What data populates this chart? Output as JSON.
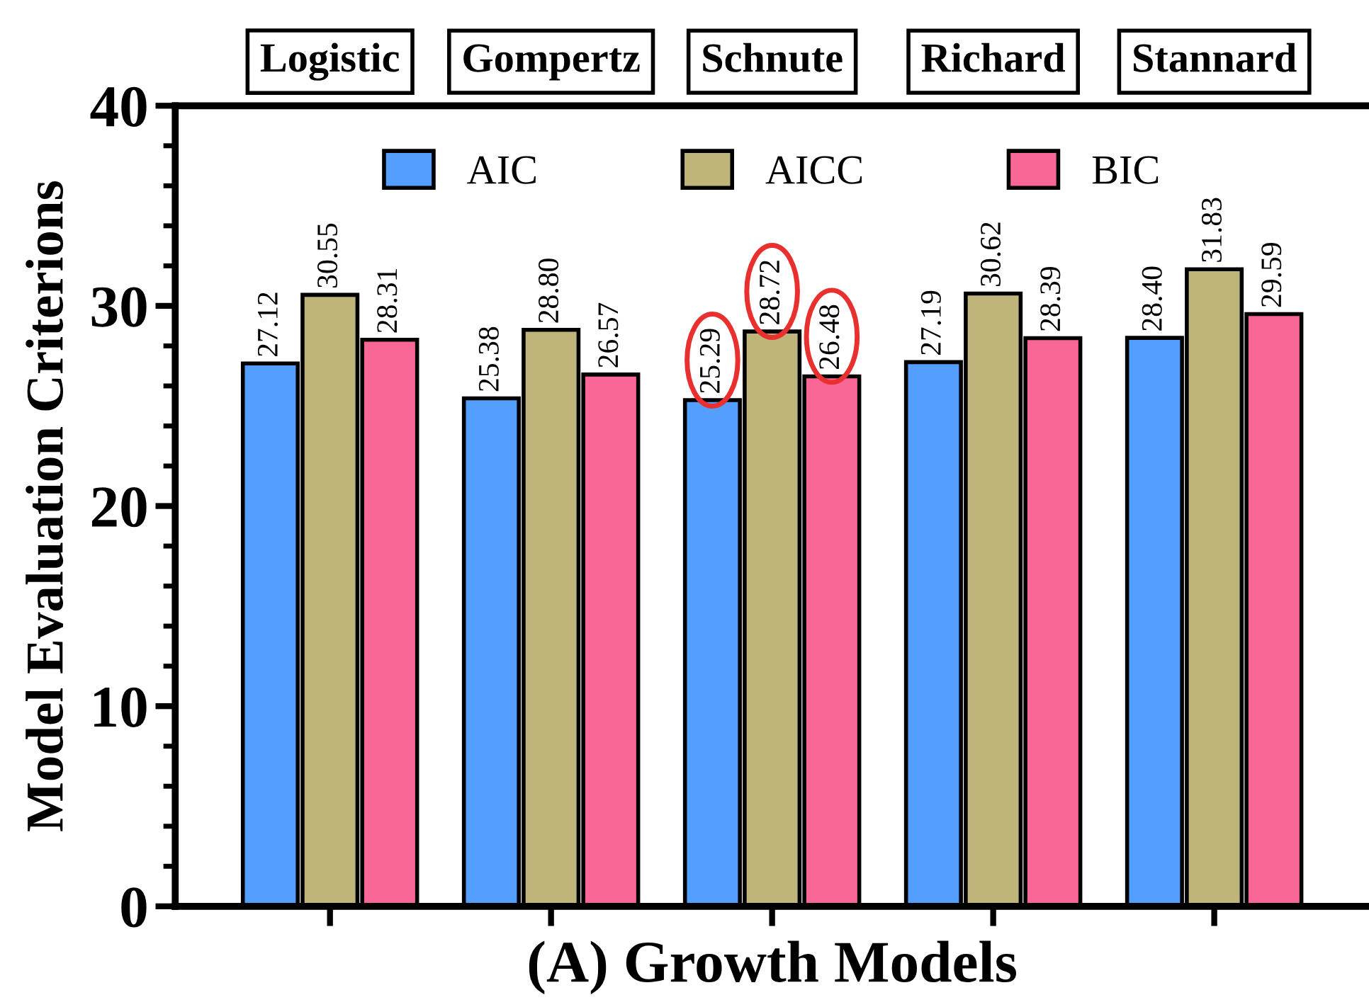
{
  "chart_data": {
    "type": "bar",
    "xlabel": "(A) Growth Models",
    "ylabel": "Model Evaluation Criterions",
    "categories": [
      "Logistic",
      "Gompertz",
      "Schnute",
      "Richard",
      "Stannard"
    ],
    "series": [
      {
        "name": "AIC",
        "color": "#549ffd",
        "values": [
          27.12,
          25.38,
          25.29,
          27.19,
          28.4
        ],
        "value_labels": [
          "27.12",
          "25.38",
          "25.29",
          "27.19",
          "28.40"
        ]
      },
      {
        "name": "AICC",
        "color": "#bfb57a",
        "values": [
          30.55,
          28.8,
          28.72,
          30.62,
          31.83
        ],
        "value_labels": [
          "30.55",
          "28.80",
          "28.72",
          "30.62",
          "31.83"
        ]
      },
      {
        "name": "BIC",
        "color": "#f96796",
        "values": [
          28.31,
          26.57,
          26.48,
          28.39,
          29.59
        ],
        "value_labels": [
          "28.31",
          "26.57",
          "26.48",
          "28.39",
          "29.59"
        ]
      }
    ],
    "ylim": [
      0,
      40
    ],
    "yticks": [
      0,
      10,
      20,
      30,
      40
    ],
    "legend": "top",
    "grid": false
  }
}
